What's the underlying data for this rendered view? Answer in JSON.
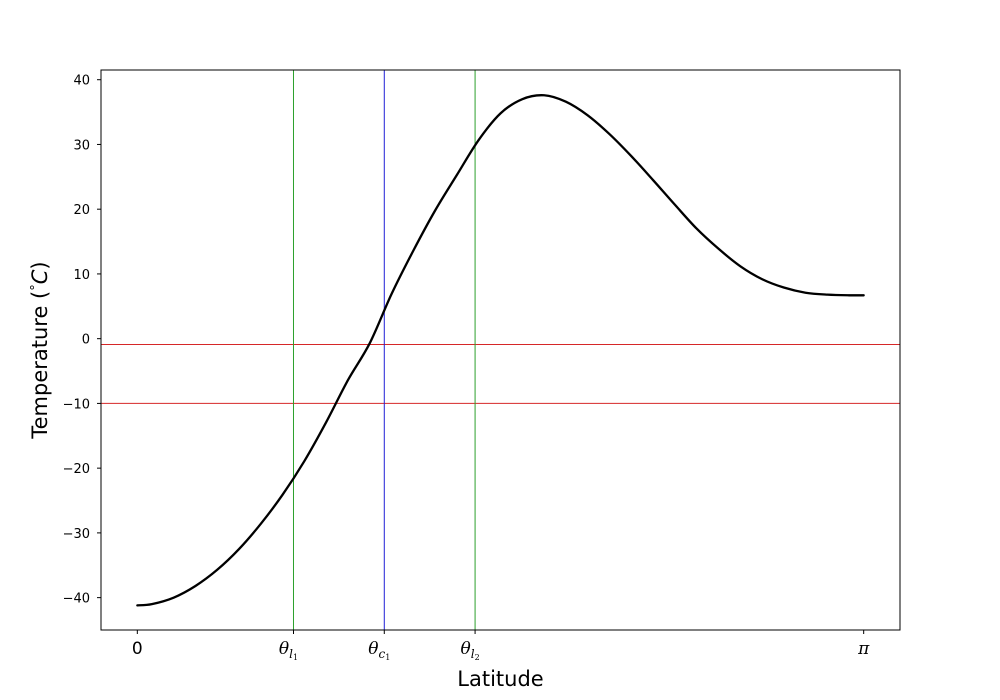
{
  "chart_data": {
    "type": "line",
    "title": "",
    "xlabel": "Latitude",
    "ylabel": "Temperature ($^{\\circ}C$)",
    "ylabel_parts": {
      "before": "Temperature (",
      "degree": "°",
      "unit": "C",
      "after": ")"
    },
    "x_range_in_pi": [
      -0.05,
      1.05
    ],
    "ylim": [
      -45,
      41.5
    ],
    "grid": false,
    "legend": "none",
    "y_ticks": [
      -40,
      -30,
      -20,
      -10,
      0,
      10,
      20,
      30,
      40
    ],
    "y_tick_labels": [
      "−40",
      "−30",
      "−20",
      "−10",
      "0",
      "10",
      "20",
      "30",
      "40"
    ],
    "x_ticks": [
      {
        "x_in_pi": 0.0,
        "base": "0",
        "sub": "",
        "subsub": ""
      },
      {
        "x_in_pi": 0.215,
        "base": "θ",
        "sub": "l",
        "subsub": "1"
      },
      {
        "x_in_pi": 0.34,
        "base": "θ",
        "sub": "c",
        "subsub": "1"
      },
      {
        "x_in_pi": 0.465,
        "base": "θ",
        "sub": "l",
        "subsub": "2"
      },
      {
        "x_in_pi": 1.0,
        "base": "π",
        "sub": "",
        "subsub": ""
      }
    ],
    "series": [
      {
        "color": "#000000",
        "x_in_pi": [
          0,
          0.02,
          0.05,
          0.08,
          0.11,
          0.14,
          0.17,
          0.2,
          0.23,
          0.26,
          0.29,
          0.32,
          0.35,
          0.38,
          0.41,
          0.44,
          0.47,
          0.5,
          0.53,
          0.56,
          0.59,
          0.62,
          0.65,
          0.68,
          0.71,
          0.74,
          0.77,
          0.8,
          0.83,
          0.86,
          0.89,
          0.92,
          0.95,
          0.98,
          1.0
        ],
        "y": [
          -41.2,
          -41.0,
          -40.0,
          -38.2,
          -35.7,
          -32.5,
          -28.6,
          -24.1,
          -18.9,
          -12.9,
          -6.4,
          -0.7,
          6.9,
          13.6,
          19.8,
          25.3,
          30.7,
          34.8,
          37.0,
          37.6,
          36.6,
          34.5,
          31.6,
          28.2,
          24.5,
          20.7,
          17.0,
          13.9,
          11.2,
          9.2,
          7.9,
          7.1,
          6.8,
          6.7,
          6.7
        ]
      }
    ],
    "reference_lines": {
      "horizontal": [
        {
          "y": -0.9,
          "color": "#d62728"
        },
        {
          "y": -10,
          "color": "#d62728"
        }
      ],
      "vertical": [
        {
          "x_in_pi": 0.215,
          "color": "#2ca02c"
        },
        {
          "x_in_pi": 0.34,
          "color": "#1f1fd6"
        },
        {
          "x_in_pi": 0.465,
          "color": "#2ca02c"
        }
      ]
    }
  }
}
